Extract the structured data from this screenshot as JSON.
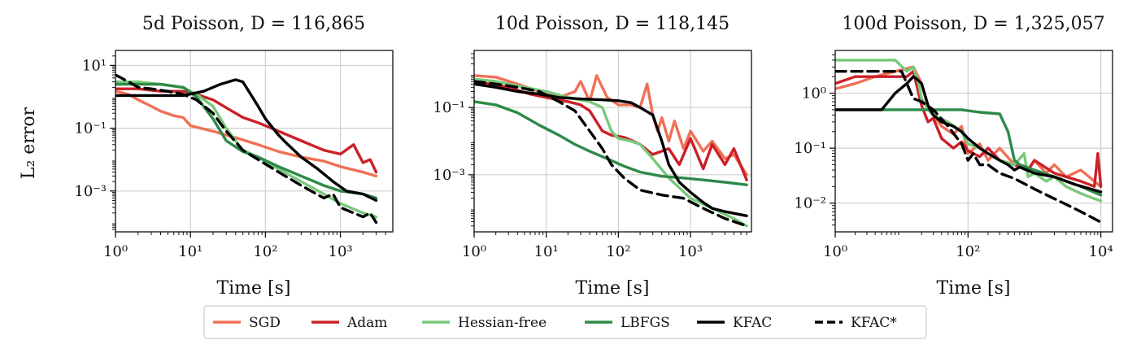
{
  "chart_data": {
    "type": "line",
    "ylabel_shared": "L₂ error",
    "legend": {
      "placement": "bottom-center",
      "entries": [
        {
          "name": "SGD",
          "color": "#f07056",
          "dash": false
        },
        {
          "name": "Adam",
          "color": "#cb2027",
          "dash": false
        },
        {
          "name": "Hessian-free",
          "color": "#78c97a",
          "dash": false
        },
        {
          "name": "LBFGS",
          "color": "#2d8a48",
          "dash": false
        },
        {
          "name": "KFAC",
          "color": "#000000",
          "dash": false
        },
        {
          "name": "KFAC*",
          "color": "#000000",
          "dash": true
        }
      ]
    },
    "panels": [
      {
        "title": "5d Poisson, D = 116,865",
        "xlabel": "Time [s]",
        "xscale": "log",
        "yscale": "log",
        "xlim": [
          1,
          5000
        ],
        "ylim": [
          5e-05,
          30
        ],
        "xticks": [
          {
            "v": 1,
            "label": "10⁰"
          },
          {
            "v": 10,
            "label": "10¹"
          },
          {
            "v": 100,
            "label": "10²"
          },
          {
            "v": 1000,
            "label": "10³"
          }
        ],
        "yticks": [
          {
            "v": 10,
            "label": "10¹"
          },
          {
            "v": 0.1,
            "label": "10⁻¹"
          },
          {
            "v": 0.001,
            "label": "10⁻³"
          }
        ],
        "series": [
          {
            "name": "SGD",
            "x": [
              1,
              1.5,
              2,
              3,
              4,
              6,
              8,
              10,
              20,
              40,
              80,
              150,
              300,
              600,
              1000,
              2000,
              3000
            ],
            "y": [
              1.5,
              1.2,
              0.8,
              0.5,
              0.35,
              0.25,
              0.22,
              0.12,
              0.08,
              0.05,
              0.03,
              0.018,
              0.012,
              0.009,
              0.006,
              0.004,
              0.003
            ]
          },
          {
            "name": "Adam",
            "x": [
              1,
              2,
              4,
              8,
              12,
              20,
              30,
              50,
              80,
              150,
              300,
              600,
              1000,
              1500,
              2000,
              2500,
              3000
            ],
            "y": [
              1.8,
              1.8,
              1.5,
              1.5,
              1.2,
              0.8,
              0.45,
              0.22,
              0.15,
              0.08,
              0.04,
              0.02,
              0.015,
              0.03,
              0.008,
              0.01,
              0.004
            ]
          },
          {
            "name": "Hessian-free",
            "x": [
              1,
              2,
              4,
              8,
              12,
              20,
              30,
              50,
              80,
              150,
              300,
              600,
              1000,
              2000,
              3000
            ],
            "y": [
              3,
              3,
              2.5,
              2,
              1.2,
              0.5,
              0.1,
              0.02,
              0.012,
              0.005,
              0.002,
              0.0008,
              0.0004,
              0.0002,
              0.00015
            ]
          },
          {
            "name": "LBFGS",
            "x": [
              1,
              2,
              4,
              8,
              12,
              20,
              30,
              50,
              80,
              150,
              300,
              600,
              1000,
              2000,
              3000
            ],
            "y": [
              2.5,
              2.5,
              2.5,
              2,
              1,
              0.2,
              0.04,
              0.018,
              0.012,
              0.006,
              0.003,
              0.0015,
              0.001,
              0.0008,
              0.0006
            ]
          },
          {
            "name": "KFAC",
            "x": [
              1,
              2,
              4,
              8,
              15,
              25,
              40,
              50,
              60,
              80,
              100,
              150,
              200,
              300,
              500,
              800,
              1200,
              2000,
              3000
            ],
            "y": [
              1.1,
              1.1,
              1.1,
              1.1,
              1.5,
              2.5,
              3.5,
              3,
              1.5,
              0.5,
              0.2,
              0.06,
              0.03,
              0.012,
              0.005,
              0.002,
              0.001,
              0.0008,
              0.0005
            ]
          },
          {
            "name": "KFAC*",
            "x": [
              1,
              1.5,
              2,
              3,
              5,
              8,
              12,
              20,
              30,
              50,
              80,
              150,
              300,
              600,
              800,
              1000,
              1500,
              2000,
              2500,
              3000
            ],
            "y": [
              5,
              3,
              2,
              1.8,
              1.5,
              1.2,
              0.8,
              0.3,
              0.08,
              0.02,
              0.01,
              0.004,
              0.0015,
              0.0006,
              0.0008,
              0.0003,
              0.0002,
              0.00015,
              0.0002,
              0.0001
            ]
          }
        ]
      },
      {
        "title": "10d Poisson, D = 118,145",
        "xlabel": "Time [s]",
        "xscale": "log",
        "yscale": "log",
        "xlim": [
          1,
          7000
        ],
        "ylim": [
          2e-05,
          5
        ],
        "xticks": [
          {
            "v": 1,
            "label": "10⁰"
          },
          {
            "v": 10,
            "label": "10¹"
          },
          {
            "v": 100,
            "label": "10²"
          },
          {
            "v": 1000,
            "label": "10³"
          }
        ],
        "yticks": [
          {
            "v": 0.1,
            "label": "10⁻¹"
          },
          {
            "v": 0.001,
            "label": "10⁻³"
          }
        ],
        "series": [
          {
            "name": "SGD",
            "x": [
              1,
              2,
              4,
              8,
              15,
              25,
              30,
              40,
              50,
              70,
              100,
              150,
              200,
              250,
              300,
              350,
              400,
              500,
              600,
              800,
              1000,
              1500,
              2000,
              3000,
              4000,
              6000
            ],
            "y": [
              0.9,
              0.8,
              0.5,
              0.3,
              0.2,
              0.3,
              0.6,
              0.15,
              0.9,
              0.2,
              0.12,
              0.12,
              0.1,
              0.5,
              0.06,
              0.02,
              0.05,
              0.01,
              0.04,
              0.006,
              0.02,
              0.005,
              0.01,
              0.003,
              0.004,
              0.001
            ]
          },
          {
            "name": "Adam",
            "x": [
              1,
              3,
              6,
              10,
              20,
              30,
              40,
              60,
              80,
              120,
              160,
              200,
              300,
              500,
              700,
              1000,
              1500,
              2000,
              3000,
              4000,
              6000
            ],
            "y": [
              0.6,
              0.4,
              0.25,
              0.2,
              0.15,
              0.12,
              0.08,
              0.02,
              0.015,
              0.013,
              0.01,
              0.008,
              0.004,
              0.006,
              0.002,
              0.012,
              0.0015,
              0.008,
              0.002,
              0.006,
              0.0007
            ]
          },
          {
            "name": "Hessian-free",
            "x": [
              1,
              2,
              5,
              10,
              20,
              40,
              60,
              80,
              100,
              150,
              200,
              300,
              500,
              1000,
              2000,
              4000,
              6000
            ],
            "y": [
              0.7,
              0.6,
              0.4,
              0.3,
              0.2,
              0.15,
              0.1,
              0.02,
              0.012,
              0.01,
              0.008,
              0.003,
              0.0008,
              0.0002,
              0.0001,
              5e-05,
              3e-05
            ]
          },
          {
            "name": "LBFGS",
            "x": [
              1,
              2,
              4,
              8,
              15,
              25,
              40,
              70,
              120,
              200,
              400,
              800,
              1500,
              3000,
              6000
            ],
            "y": [
              0.15,
              0.12,
              0.07,
              0.03,
              0.015,
              0.008,
              0.005,
              0.003,
              0.0018,
              0.0012,
              0.0009,
              0.0008,
              0.0007,
              0.0006,
              0.0005
            ]
          },
          {
            "name": "KFAC",
            "x": [
              1,
              2,
              4,
              8,
              15,
              30,
              60,
              100,
              150,
              200,
              300,
              400,
              500,
              700,
              1000,
              1500,
              2000,
              3000,
              6000
            ],
            "y": [
              0.5,
              0.4,
              0.3,
              0.25,
              0.2,
              0.18,
              0.17,
              0.16,
              0.14,
              0.1,
              0.06,
              0.01,
              0.002,
              0.0006,
              0.0003,
              0.00015,
              0.0001,
              8e-05,
              6e-05
            ]
          },
          {
            "name": "KFAC*",
            "x": [
              1,
              2,
              4,
              8,
              15,
              25,
              40,
              60,
              80,
              120,
              200,
              400,
              800,
              1500,
              3000,
              6000
            ],
            "y": [
              0.6,
              0.5,
              0.4,
              0.3,
              0.15,
              0.08,
              0.02,
              0.006,
              0.002,
              0.0008,
              0.00035,
              0.00025,
              0.0002,
              0.0001,
              5e-05,
              3e-05
            ]
          }
        ]
      },
      {
        "title": "100d Poisson, D = 1,325,057",
        "xlabel": "Time [s]",
        "xscale": "log",
        "yscale": "log",
        "xlim": [
          1,
          15000
        ],
        "ylim": [
          0.003,
          6
        ],
        "xticks": [
          {
            "v": 1,
            "label": "10⁰"
          },
          {
            "v": 100,
            "label": "10²"
          },
          {
            "v": 10000,
            "label": "10⁴"
          }
        ],
        "yticks": [
          {
            "v": 1,
            "label": "10⁰"
          },
          {
            "v": 0.1,
            "label": "10⁻¹"
          },
          {
            "v": 0.01,
            "label": "10⁻²"
          }
        ],
        "series": [
          {
            "name": "SGD",
            "x": [
              1,
              2,
              4,
              8,
              15,
              20,
              25,
              30,
              40,
              60,
              80,
              100,
              150,
              200,
              300,
              500,
              800,
              1000,
              1500,
              2000,
              3000,
              5000,
              8000,
              10000
            ],
            "y": [
              1.2,
              1.5,
              2,
              2.5,
              3,
              1.5,
              0.6,
              0.4,
              0.25,
              0.18,
              0.25,
              0.08,
              0.12,
              0.06,
              0.1,
              0.05,
              0.04,
              0.06,
              0.035,
              0.05,
              0.03,
              0.04,
              0.025,
              0.02
            ]
          },
          {
            "name": "Adam",
            "x": [
              1,
              2,
              4,
              8,
              12,
              15,
              20,
              25,
              30,
              40,
              60,
              80,
              100,
              150,
              200,
              300,
              500,
              800,
              1000,
              2000,
              3000,
              5000,
              8000,
              9000,
              10000
            ],
            "y": [
              1.5,
              2,
              2,
              2,
              2,
              2.5,
              0.6,
              0.3,
              0.35,
              0.15,
              0.1,
              0.13,
              0.09,
              0.07,
              0.1,
              0.06,
              0.05,
              0.04,
              0.06,
              0.035,
              0.03,
              0.025,
              0.02,
              0.08,
              0.02
            ]
          },
          {
            "name": "Hessian-free",
            "x": [
              1,
              2,
              4,
              8,
              12,
              15,
              18,
              20,
              25,
              30,
              50,
              80,
              100,
              150,
              200,
              300,
              500,
              700,
              800,
              1000,
              1500,
              2000,
              3000,
              5000,
              8000,
              10000
            ],
            "y": [
              4,
              4,
              4,
              4,
              2.5,
              3,
              1.5,
              0.8,
              0.5,
              0.4,
              0.3,
              0.2,
              0.12,
              0.1,
              0.08,
              0.06,
              0.05,
              0.08,
              0.03,
              0.035,
              0.025,
              0.03,
              0.02,
              0.015,
              0.012,
              0.011
            ]
          },
          {
            "name": "LBFGS",
            "x": [
              1,
              5,
              10,
              20,
              40,
              80,
              150,
              300,
              400,
              500,
              600,
              1000,
              2000,
              5000,
              10000
            ],
            "y": [
              0.5,
              0.5,
              0.5,
              0.5,
              0.5,
              0.5,
              0.45,
              0.42,
              0.2,
              0.06,
              0.05,
              0.04,
              0.03,
              0.02,
              0.014
            ]
          },
          {
            "name": "KFAC",
            "x": [
              1,
              2,
              3,
              5,
              8,
              12,
              15,
              17,
              20,
              25,
              30,
              40,
              60,
              80,
              100,
              150,
              200,
              300,
              400,
              500,
              600,
              1000,
              2000,
              4000,
              10000
            ],
            "y": [
              0.5,
              0.5,
              0.5,
              0.5,
              1,
              1.5,
              2,
              1.8,
              1.5,
              0.6,
              0.4,
              0.3,
              0.25,
              0.2,
              0.15,
              0.1,
              0.08,
              0.06,
              0.05,
              0.04,
              0.045,
              0.035,
              0.03,
              0.022,
              0.016
            ]
          },
          {
            "name": "KFAC*",
            "x": [
              1,
              2,
              4,
              6,
              8,
              10,
              12,
              15,
              20,
              30,
              50,
              80,
              100,
              120,
              150,
              200,
              300,
              500,
              1000,
              2000,
              5000,
              10000
            ],
            "y": [
              2.5,
              2.5,
              2.5,
              2.5,
              2.5,
              2.5,
              1.5,
              0.8,
              0.7,
              0.5,
              0.25,
              0.12,
              0.06,
              0.08,
              0.05,
              0.05,
              0.035,
              0.028,
              0.018,
              0.012,
              0.007,
              0.0045
            ]
          }
        ]
      }
    ]
  }
}
